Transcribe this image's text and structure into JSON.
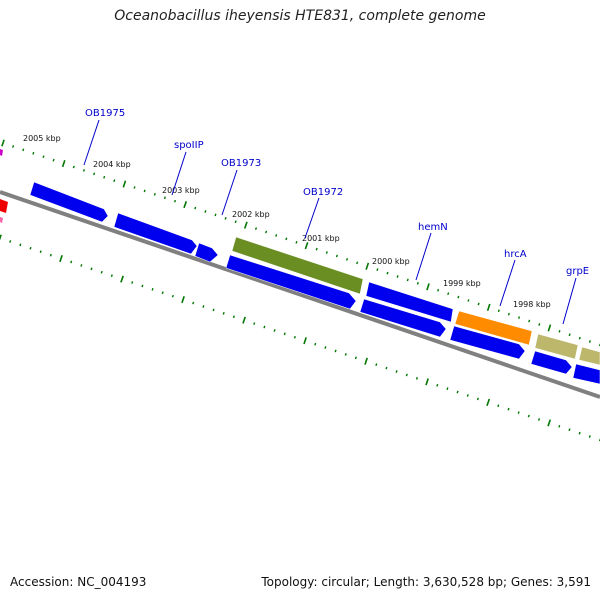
{
  "title": "Oceanobacillus iheyensis HTE831, complete genome",
  "footer": {
    "accession": "Accession: NC_004193",
    "summary": "Topology: circular; Length: 3,630,528 bp; Genes: 3,591"
  },
  "colors": {
    "forward_gene": "#0000ee",
    "reverse_gene": "#0000ee",
    "olive_gene": "#6b8e23",
    "orange_gene": "#ff8c00",
    "khaki_gene": "#bdb76b",
    "red_gene": "#ee0000",
    "backbone": "#808080",
    "ticks": "#007700",
    "gene_label": "#0000cc"
  },
  "kbp_labels": [
    "2005 kbp",
    "2004 kbp",
    "2003 kbp",
    "2002 kbp",
    "2001 kbp",
    "2000 kbp",
    "1999 kbp",
    "1998 kbp"
  ],
  "gene_labels": [
    "OB1975",
    "spoIIP",
    "OB1973",
    "OB1972",
    "hemN",
    "hrcA",
    "grpE"
  ]
}
